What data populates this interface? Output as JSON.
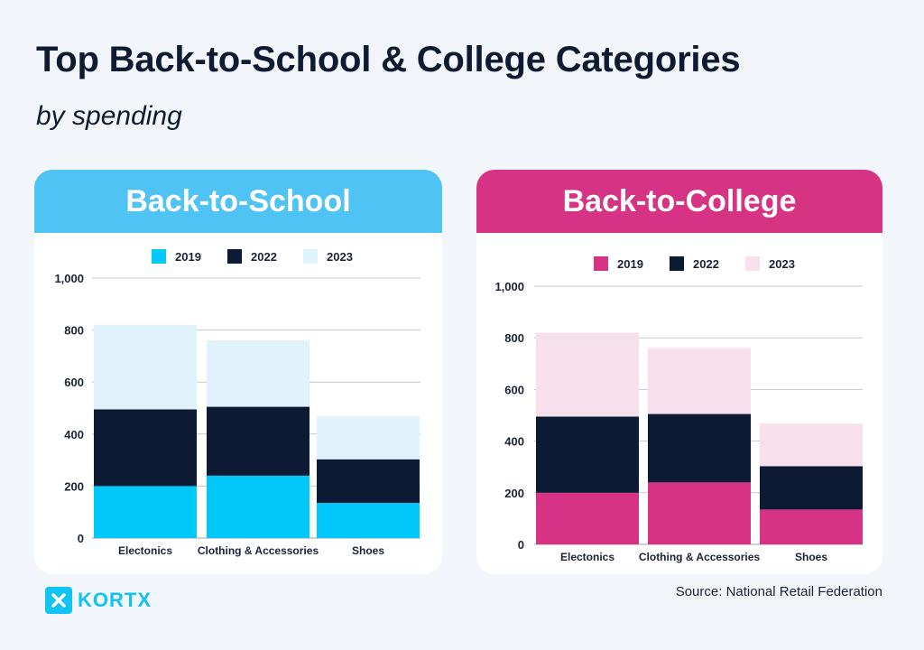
{
  "title": "Top Back-to-School & College Categories",
  "subtitle": "by spending",
  "source": "Source: National Retail Federation",
  "logo": {
    "text": "KORTX",
    "icon": "x-logo-icon",
    "color": "#11c3f2"
  },
  "chart_data": [
    {
      "type": "bar",
      "stacked": true,
      "title": "Back-to-School",
      "header_color": "#4ec3f4",
      "categories": [
        "Electonics",
        "Clothing & Accessories",
        "Shoes"
      ],
      "series": [
        {
          "name": "2019",
          "color": "#00c8f8",
          "values": [
            200,
            240,
            135
          ]
        },
        {
          "name": "2022",
          "color": "#0c1a33",
          "values": [
            295,
            265,
            168
          ]
        },
        {
          "name": "2023",
          "color": "#e0f3fd",
          "values": [
            325,
            255,
            165
          ]
        }
      ],
      "ylim": [
        0,
        1000
      ],
      "yticks": [
        0,
        200,
        400,
        600,
        800,
        1000
      ],
      "ytick_labels": [
        "0",
        "200",
        "400",
        "600",
        "800",
        "1,000"
      ],
      "grid": true,
      "legend": "top"
    },
    {
      "type": "bar",
      "stacked": true,
      "title": "Back-to-College",
      "header_color": "#d63384",
      "categories": [
        "Electonics",
        "Clothing & Accessories",
        "Shoes"
      ],
      "series": [
        {
          "name": "2019",
          "color": "#d63384",
          "values": [
            200,
            240,
            135
          ]
        },
        {
          "name": "2022",
          "color": "#0c1a33",
          "values": [
            295,
            265,
            168
          ]
        },
        {
          "name": "2023",
          "color": "#f7e0ec",
          "values": [
            325,
            255,
            165
          ]
        }
      ],
      "ylim": [
        0,
        1000
      ],
      "yticks": [
        0,
        200,
        400,
        600,
        800,
        1000
      ],
      "ytick_labels": [
        "0",
        "200",
        "400",
        "600",
        "800",
        "1,000"
      ],
      "grid": true,
      "legend": "top"
    }
  ]
}
